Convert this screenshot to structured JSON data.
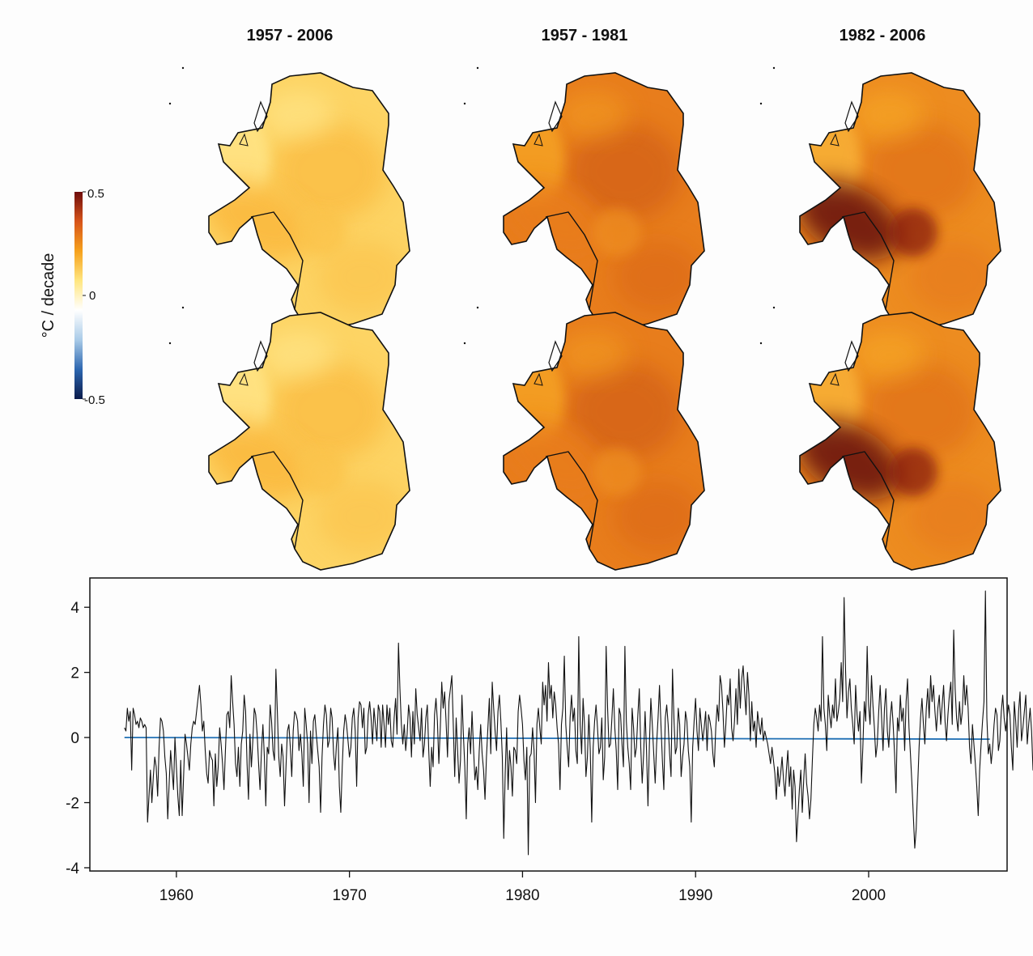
{
  "maps": {
    "col_titles": [
      "1957 - 2006",
      "1957 - 1981",
      "1982 - 2006"
    ],
    "panels": [
      {
        "row": 1,
        "period": "1957 - 2006",
        "warm_level": 0.25,
        "wais_hotspot": 0.35
      },
      {
        "row": 1,
        "period": "1957 - 1981",
        "warm_level": 0.55,
        "wais_hotspot": 0.55
      },
      {
        "row": 1,
        "period": "1982 - 2006",
        "warm_level": 0.5,
        "wais_hotspot": 1.0
      },
      {
        "row": 2,
        "period": "1957 - 2006",
        "warm_level": 0.25,
        "wais_hotspot": 0.35
      },
      {
        "row": 2,
        "period": "1957 - 1981",
        "warm_level": 0.55,
        "wais_hotspot": 0.55
      },
      {
        "row": 2,
        "period": "1982 - 2006",
        "warm_level": 0.5,
        "wais_hotspot": 1.0
      }
    ]
  },
  "colorbar": {
    "label": "°C / decade",
    "tick_0": "0.5",
    "tick_1": "0",
    "tick_2": "-0.5",
    "stops": [
      "#0a1a4a",
      "#2c66b0",
      "#a9cbe8",
      "#ffffff",
      "#ffe680",
      "#f6a11c",
      "#d7541a",
      "#6e0c0c"
    ]
  },
  "chart_data": {
    "type": "line",
    "xlim": [
      1955,
      2008
    ],
    "ylim": [
      -4.1,
      4.9
    ],
    "x_ticks": [
      1960,
      1970,
      1980,
      1990,
      2000
    ],
    "y_ticks": [
      -4,
      -2,
      0,
      2,
      4
    ],
    "x_tick_labels": [
      "1960",
      "1970",
      "1980",
      "1990",
      "2000"
    ],
    "y_tick_labels": [
      "-4",
      "-2",
      "0",
      "2",
      "4"
    ],
    "grid": false,
    "series": [
      {
        "color": "#111111",
        "x_start": 1957.0,
        "x_step": 0.08333,
        "values": [
          0.3,
          0.2,
          0.9,
          0.5,
          0.8,
          -1.0,
          0.9,
          0.7,
          0.4,
          0.5,
          0.3,
          0.6,
          0.5,
          0.3,
          0.4,
          0.3,
          -2.6,
          -1.8,
          -1.0,
          -2.0,
          -1.2,
          -0.6,
          -0.9,
          -1.8,
          -0.3,
          0.6,
          0.5,
          0.2,
          -0.6,
          -1.1,
          -2.5,
          -1.4,
          -0.4,
          -1.0,
          -1.6,
          0.0,
          -0.9,
          -1.8,
          -2.4,
          -0.7,
          -2.4,
          -1.2,
          0.1,
          -0.2,
          -0.6,
          -1.0,
          -0.2,
          0.3,
          0.5,
          0.4,
          0.8,
          1.2,
          1.6,
          1.0,
          0.2,
          0.5,
          -0.4,
          -1.1,
          -1.4,
          -0.4,
          -0.6,
          -0.7,
          -2.1,
          -0.5,
          -1.5,
          -0.9,
          0.3,
          -0.2,
          -0.8,
          -1.6,
          -0.4,
          0.7,
          0.8,
          0.3,
          1.9,
          1.1,
          0.4,
          -0.8,
          -1.2,
          -0.3,
          -1.5,
          -0.2,
          0.2,
          1.3,
          0.8,
          -0.8,
          -1.9,
          0.1,
          -0.9,
          -0.1,
          0.9,
          0.7,
          0.1,
          -0.8,
          -1.6,
          -0.4,
          0.4,
          -0.6,
          -2.1,
          -0.3,
          -0.5,
          1.0,
          0.5,
          -0.4,
          -0.7,
          2.1,
          0.8,
          -0.6,
          -1.2,
          -0.2,
          -0.6,
          -2.1,
          -0.9,
          0.2,
          0.4,
          -0.3,
          -1.2,
          0.2,
          0.8,
          0.7,
          0.5,
          -0.4,
          0.1,
          -0.5,
          -1.5,
          0.9,
          0.4,
          -0.2,
          -2.0,
          0.2,
          -0.8,
          0.5,
          0.7,
          0.1,
          -0.4,
          -0.9,
          -2.3,
          -0.6,
          0.4,
          1.0,
          0.7,
          -0.3,
          -0.1,
          0.9,
          0.6,
          -0.5,
          -1.0,
          -0.2,
          0.3,
          -1.5,
          -2.3,
          -0.9,
          0.2,
          0.7,
          0.4,
          -0.1,
          -0.6,
          -0.3,
          0.6,
          0.9,
          0.2,
          -1.5,
          0.6,
          1.1,
          1.0,
          0.3,
          0.9,
          -0.5,
          -0.3,
          0.7,
          1.1,
          0.6,
          -0.2,
          0.9,
          0.4,
          -0.1,
          1.0,
          0.8,
          -0.3,
          1.0,
          0.4,
          -0.3,
          1.0,
          0.4,
          0.9,
          -0.1,
          -0.3,
          0.6,
          1.2,
          0.1,
          2.9,
          1.5,
          0.4,
          -0.2,
          0.4,
          -0.4,
          0.1,
          1.0,
          0.6,
          -0.6,
          0.8,
          -0.2,
          1.5,
          0.7,
          0.3,
          -0.1,
          0.9,
          -0.6,
          -0.2,
          0.6,
          1.0,
          -0.4,
          -1.5,
          -0.3,
          -0.9,
          0.7,
          1.2,
          0.5,
          -0.8,
          0.3,
          1.7,
          0.9,
          1.4,
          0.5,
          -0.6,
          1.1,
          1.5,
          1.9,
          0.4,
          -1.2,
          0.6,
          -0.4,
          -1.4,
          -0.7,
          1.3,
          0.1,
          -0.9,
          -2.5,
          -0.2,
          0.3,
          -0.5,
          0.8,
          -0.3,
          -1.3,
          -0.9,
          -1.6,
          -0.4,
          0.4,
          -0.5,
          -1.0,
          -1.9,
          -0.6,
          0.3,
          1.2,
          -0.5,
          1.7,
          0.9,
          0.2,
          -0.4,
          0.8,
          1.3,
          0.5,
          -0.6,
          -3.1,
          -1.1,
          0.3,
          -1.6,
          -0.4,
          -0.9,
          -1.8,
          -0.3,
          -0.4,
          -0.8,
          0.8,
          1.3,
          0.9,
          0.4,
          -0.7,
          -1.3,
          -0.3,
          -3.6,
          -0.6,
          -0.5,
          0.3,
          -0.4,
          -2.0,
          0.4,
          0.9,
          0.3,
          -0.2,
          1.7,
          1.0,
          1.6,
          0.5,
          2.3,
          1.2,
          1.6,
          0.6,
          1.4,
          1.0,
          0.3,
          -0.2,
          -1.6,
          0.4,
          0.9,
          2.5,
          0.4,
          -0.3,
          -0.9,
          0.6,
          1.3,
          0.5,
          0.9,
          -0.4,
          -0.8,
          3.1,
          0.4,
          -0.5,
          1.2,
          0.4,
          -1.2,
          -0.6,
          0.7,
          -0.4,
          -2.6,
          -0.3,
          0.5,
          1.0,
          0.3,
          -0.5,
          -0.3,
          0.6,
          -1.3,
          -0.6,
          2.8,
          0.9,
          -0.3,
          -0.2,
          0.6,
          1.5,
          0.3,
          -0.4,
          -1.6,
          0.9,
          0.7,
          -0.2,
          -0.9,
          2.8,
          0.5,
          -0.3,
          -0.8,
          -1.6,
          0.9,
          0.3,
          -0.6,
          -0.3,
          0.7,
          1.5,
          -0.3,
          -1.4,
          -0.5,
          0.8,
          -0.4,
          -2.1,
          -0.2,
          1.2,
          0.4,
          -0.5,
          -1.4,
          -0.2,
          0.6,
          1.6,
          0.4,
          -0.7,
          -1.6,
          0.6,
          1.0,
          0.4,
          -0.5,
          -1.2,
          2.1,
          0.6,
          -0.5,
          -0.3,
          0.9,
          0.4,
          -1.2,
          -0.6,
          -0.2,
          0.8,
          0.5,
          -0.4,
          -0.9,
          -2.6,
          -0.3,
          0.5,
          1.2,
          0.2,
          -0.4,
          0.9,
          0.4,
          -0.1,
          0.3,
          0.8,
          -0.4,
          0.7,
          0.5,
          0.2,
          -0.5,
          -0.9,
          0.3,
          1.0,
          0.5,
          1.9,
          1.6,
          0.8,
          -0.3,
          0.4,
          1.3,
          1.0,
          1.8,
          0.3,
          -0.1,
          0.5,
          1.5,
          0.4,
          2.1,
          0.9,
          1.8,
          2.2,
          1.4,
          0.7,
          2.0,
          1.3,
          -0.1,
          1.1,
          0.2,
          0.5,
          -0.3,
          0.8,
          0.4,
          0.1,
          0.6,
          -0.1,
          0.2,
          0.0,
          -0.2,
          -0.5,
          -0.8,
          -0.3,
          -0.7,
          -1.1,
          -1.9,
          -0.9,
          -1.5,
          -1.1,
          -0.6,
          -1.3,
          -1.8,
          -1.0,
          -0.4,
          -1.5,
          -0.9,
          -2.2,
          -1.0,
          -1.5,
          -3.2,
          -2.4,
          -1.6,
          -1.0,
          -2.3,
          -1.3,
          -0.5,
          -1.4,
          -1.8,
          -2.5,
          -1.9,
          -0.7,
          0.4,
          0.9,
          0.6,
          0.2,
          1.0,
          0.5,
          3.1,
          0.9,
          0.4,
          -0.4,
          1.3,
          0.7,
          0.3,
          1.0,
          0.6,
          1.8,
          0.5,
          0.8,
          1.2,
          2.3,
          1.1,
          4.3,
          2.1,
          0.6,
          1.4,
          1.8,
          0.9,
          0.4,
          -0.2,
          1.6,
          0.7,
          0.2,
          0.8,
          -1.4,
          -0.3,
          1.1,
          0.5,
          2.8,
          1.0,
          0.4,
          1.9,
          1.0,
          0.3,
          -0.6,
          -0.2,
          0.8,
          1.6,
          0.6,
          -0.4,
          0.9,
          1.5,
          0.2,
          -0.3,
          0.6,
          1.1,
          0.4,
          -0.5,
          -1.7,
          0.6,
          0.2,
          1.3,
          0.5,
          0.9,
          -0.4,
          1.1,
          1.8,
          0.3,
          -0.5,
          -1.4,
          -2.4,
          -3.4,
          -2.8,
          -1.5,
          -0.3,
          0.6,
          1.2,
          0.4,
          -0.2,
          0.9,
          1.5,
          0.6,
          1.9,
          1.1,
          1.6,
          0.8,
          0.2,
          0.9,
          1.3,
          0.4,
          1.0,
          1.6,
          0.5,
          -0.1,
          0.7,
          1.3,
          1.7,
          0.4,
          3.3,
          1.5,
          0.6,
          0.2,
          1.1,
          0.4,
          0.8,
          1.9,
          1.0,
          1.6,
          0.9,
          -0.3,
          -0.8,
          0.4,
          -0.2,
          -0.8,
          -1.5,
          -2.4,
          -1.0,
          -0.2,
          0.5,
          1.1,
          4.5,
          0.6,
          -0.5,
          -0.2,
          -0.8,
          -0.3,
          0.4,
          0.9,
          0.7,
          -0.4,
          -0.1,
          0.8,
          1.3,
          0.6,
          0.2,
          0.6,
          1.0,
          0.7,
          -0.3,
          -1.0,
          1.1,
          0.5,
          -0.3,
          0.8,
          1.4,
          -0.1,
          0.3,
          0.8,
          1.3,
          -0.2,
          0.4,
          0.9,
          0.2,
          -1.0,
          0.3,
          1.2,
          0.5,
          -0.5,
          2.2,
          0.3,
          -0.1,
          -1.4
        ]
      },
      {
        "color": "#1f6fb4",
        "x": [
          1957.0,
          2007.0
        ],
        "values": [
          0.0,
          -0.05
        ]
      }
    ]
  }
}
